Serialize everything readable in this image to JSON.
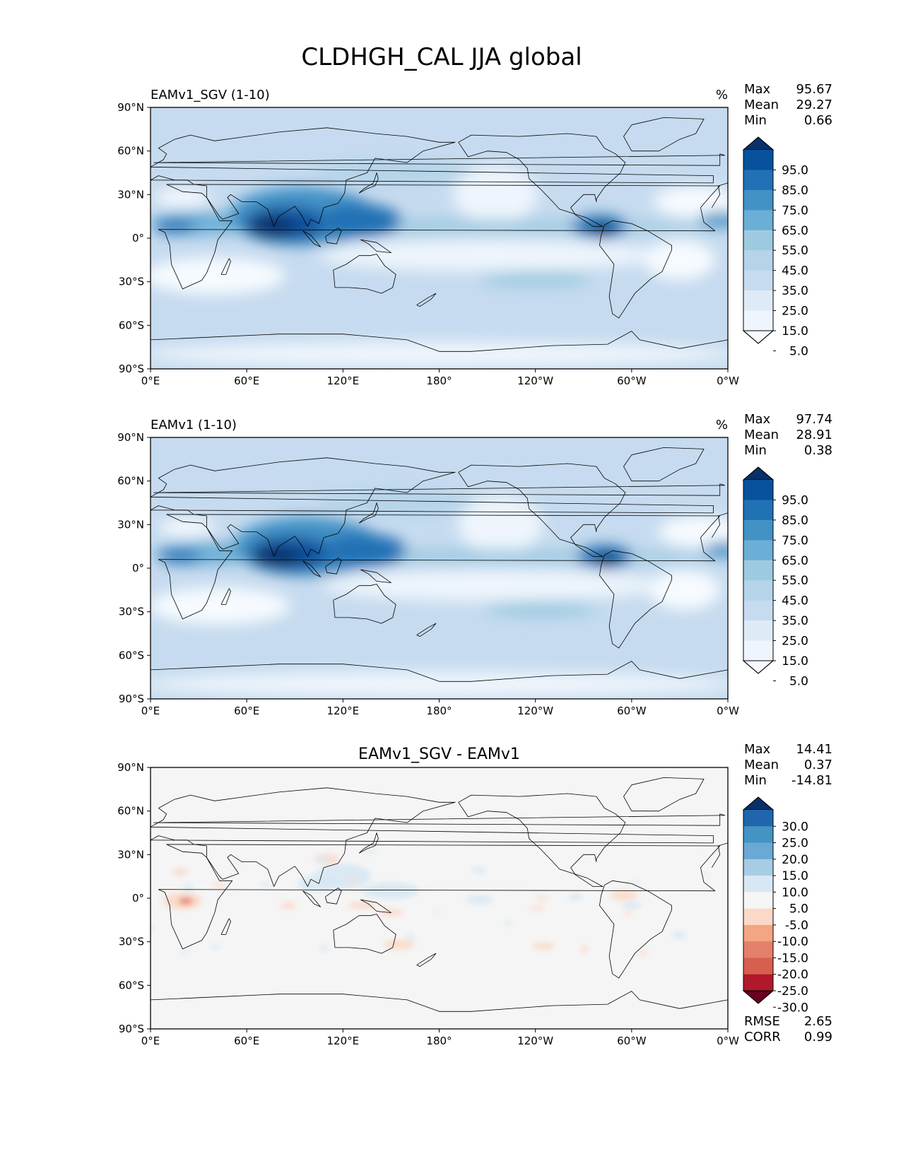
{
  "title": "CLDHGH_CAL JJA global",
  "chart_data": [
    {
      "type": "heatmap",
      "title": "EAMv1_SGV (1-10)",
      "units": "%",
      "stats": [
        {
          "label": "Max",
          "value": "95.67"
        },
        {
          "label": "Mean",
          "value": "29.27"
        },
        {
          "label": "Min",
          "value": "0.66"
        }
      ],
      "colorbar": {
        "levels": [
          "95.0",
          "85.0",
          "75.0",
          "65.0",
          "55.0",
          "45.0",
          "35.0",
          "25.0",
          "15.0",
          "5.0"
        ],
        "colors": [
          "#08306b",
          "#08519c",
          "#2171b5",
          "#4292c6",
          "#6baed6",
          "#9ecae1",
          "#b5d4e9",
          "#c6dbef",
          "#deebf7",
          "#eef5fc",
          "#f7fbff"
        ],
        "extend": "both"
      },
      "xticks": [
        "0°E",
        "60°E",
        "120°E",
        "180°",
        "120°W",
        "60°W",
        "0°W"
      ],
      "yticks": [
        "90°N",
        "60°N",
        "30°N",
        "0°",
        "30°S",
        "60°S",
        "90°S"
      ],
      "xlim": [
        0,
        360
      ],
      "ylim": [
        -90,
        90
      ]
    },
    {
      "type": "heatmap",
      "title": "EAMv1 (1-10)",
      "units": "%",
      "stats": [
        {
          "label": "Max",
          "value": "97.74"
        },
        {
          "label": "Mean",
          "value": "28.91"
        },
        {
          "label": "Min",
          "value": "0.38"
        }
      ],
      "colorbar": {
        "levels": [
          "95.0",
          "85.0",
          "75.0",
          "65.0",
          "55.0",
          "45.0",
          "35.0",
          "25.0",
          "15.0",
          "5.0"
        ],
        "colors": [
          "#08306b",
          "#08519c",
          "#2171b5",
          "#4292c6",
          "#6baed6",
          "#9ecae1",
          "#b5d4e9",
          "#c6dbef",
          "#deebf7",
          "#eef5fc",
          "#f7fbff"
        ],
        "extend": "both"
      },
      "xticks": [
        "0°E",
        "60°E",
        "120°E",
        "180°",
        "120°W",
        "60°W",
        "0°W"
      ],
      "yticks": [
        "90°N",
        "60°N",
        "30°N",
        "0°",
        "30°S",
        "60°S",
        "90°S"
      ],
      "xlim": [
        0,
        360
      ],
      "ylim": [
        -90,
        90
      ]
    },
    {
      "type": "heatmap",
      "title": "EAMv1_SGV - EAMv1",
      "units": "",
      "stats": [
        {
          "label": "Max",
          "value": "14.41"
        },
        {
          "label": "Mean",
          "value": "0.37"
        },
        {
          "label": "Min",
          "value": "-14.81"
        }
      ],
      "colorbar": {
        "levels": [
          "30.0",
          "25.0",
          "20.0",
          "15.0",
          "10.0",
          "5.0",
          "-5.0",
          "-10.0",
          "-15.0",
          "-20.0",
          "-25.0",
          "-30.0"
        ],
        "colors": [
          "#08306b",
          "#2166ac",
          "#4393c3",
          "#6aa9d4",
          "#a6cde4",
          "#d8e8f3",
          "#f5f5f5",
          "#fbd9c8",
          "#f4a582",
          "#e3806b",
          "#d6604d",
          "#b2182b",
          "#67001f"
        ],
        "extend": "both"
      },
      "metrics": [
        {
          "label": "RMSE",
          "value": "2.65"
        },
        {
          "label": "CORR",
          "value": "0.99"
        }
      ],
      "xticks": [
        "0°E",
        "60°E",
        "120°E",
        "180°",
        "120°W",
        "60°W",
        "0°W"
      ],
      "yticks": [
        "90°N",
        "60°N",
        "30°N",
        "0°",
        "30°S",
        "60°S",
        "90°S"
      ],
      "xlim": [
        0,
        360
      ],
      "ylim": [
        -90,
        90
      ]
    }
  ]
}
